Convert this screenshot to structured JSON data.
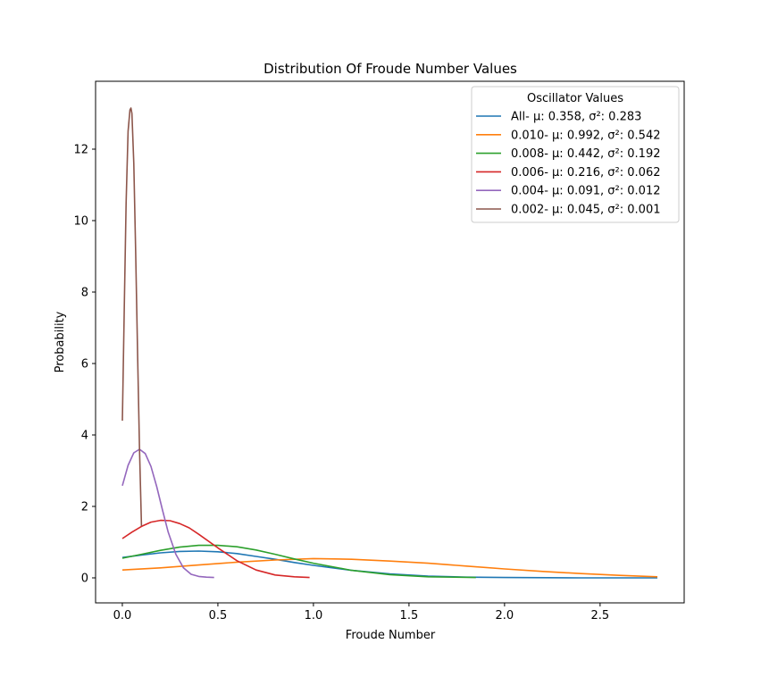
{
  "chart_data": {
    "type": "line",
    "title": "Distribution Of Froude Number Values",
    "xlabel": "Froude Number",
    "ylabel": "Probability",
    "xlim": [
      -0.14,
      2.94
    ],
    "ylim": [
      -0.7,
      13.9
    ],
    "xticks": [
      0.0,
      0.5,
      1.0,
      1.5,
      2.0,
      2.5
    ],
    "xtick_labels": [
      "0.0",
      "0.5",
      "1.0",
      "1.5",
      "2.0",
      "2.5"
    ],
    "yticks": [
      0,
      2,
      4,
      6,
      8,
      10,
      12
    ],
    "ytick_labels": [
      "0",
      "2",
      "4",
      "6",
      "8",
      "10",
      "12"
    ],
    "grid": false,
    "legend": {
      "title": "Oscillator Values",
      "placement": "top-right"
    },
    "series": [
      {
        "name": "All-  μ: 0.358, σ²: 0.283",
        "color": "#1f77b4",
        "x": [
          0.0,
          0.1,
          0.2,
          0.3,
          0.4,
          0.5,
          0.6,
          0.7,
          0.8,
          0.9,
          1.0,
          1.2,
          1.4,
          1.6,
          1.8,
          2.0,
          2.4,
          2.8
        ],
        "y": [
          0.57,
          0.64,
          0.7,
          0.74,
          0.75,
          0.73,
          0.68,
          0.6,
          0.52,
          0.43,
          0.35,
          0.21,
          0.11,
          0.05,
          0.02,
          0.01,
          0.0,
          0.0
        ]
      },
      {
        "name": "0.010-  μ: 0.992, σ²: 0.542",
        "color": "#ff7f0e",
        "x": [
          0.0,
          0.2,
          0.4,
          0.6,
          0.8,
          1.0,
          1.2,
          1.4,
          1.6,
          1.8,
          2.0,
          2.2,
          2.4,
          2.6,
          2.8
        ],
        "y": [
          0.22,
          0.28,
          0.36,
          0.44,
          0.5,
          0.54,
          0.52,
          0.47,
          0.41,
          0.33,
          0.25,
          0.18,
          0.12,
          0.07,
          0.03
        ]
      },
      {
        "name": "0.008-  μ: 0.442, σ²: 0.192",
        "color": "#2ca02c",
        "x": [
          0.0,
          0.1,
          0.2,
          0.3,
          0.4,
          0.5,
          0.6,
          0.7,
          0.8,
          0.9,
          1.0,
          1.2,
          1.4,
          1.6,
          1.85
        ],
        "y": [
          0.55,
          0.66,
          0.77,
          0.86,
          0.91,
          0.91,
          0.87,
          0.78,
          0.66,
          0.53,
          0.41,
          0.21,
          0.09,
          0.03,
          0.01
        ]
      },
      {
        "name": "0.006-  μ: 0.216, σ²: 0.062",
        "color": "#d62728",
        "x": [
          0.0,
          0.05,
          0.1,
          0.15,
          0.2,
          0.25,
          0.3,
          0.35,
          0.4,
          0.5,
          0.6,
          0.7,
          0.8,
          0.9,
          0.98
        ],
        "y": [
          1.1,
          1.28,
          1.44,
          1.56,
          1.61,
          1.6,
          1.52,
          1.4,
          1.22,
          0.84,
          0.48,
          0.22,
          0.08,
          0.03,
          0.01
        ]
      },
      {
        "name": "0.004-  μ: 0.091, σ²: 0.012",
        "color": "#9467bd",
        "x": [
          0.0,
          0.03,
          0.06,
          0.09,
          0.12,
          0.15,
          0.18,
          0.21,
          0.24,
          0.28,
          0.32,
          0.36,
          0.4,
          0.44,
          0.48
        ],
        "y": [
          2.58,
          3.15,
          3.5,
          3.6,
          3.48,
          3.12,
          2.55,
          1.9,
          1.28,
          0.66,
          0.28,
          0.1,
          0.04,
          0.02,
          0.01
        ]
      },
      {
        "name": "0.002-  μ: 0.045, σ²: 0.001",
        "color": "#8c564b",
        "x": [
          0.0,
          0.01,
          0.02,
          0.03,
          0.04,
          0.045,
          0.05,
          0.06,
          0.07,
          0.08,
          0.09,
          0.1
        ],
        "y": [
          4.4,
          7.5,
          10.5,
          12.5,
          13.1,
          13.15,
          13.0,
          11.6,
          9.1,
          6.2,
          3.6,
          1.45
        ]
      }
    ]
  }
}
